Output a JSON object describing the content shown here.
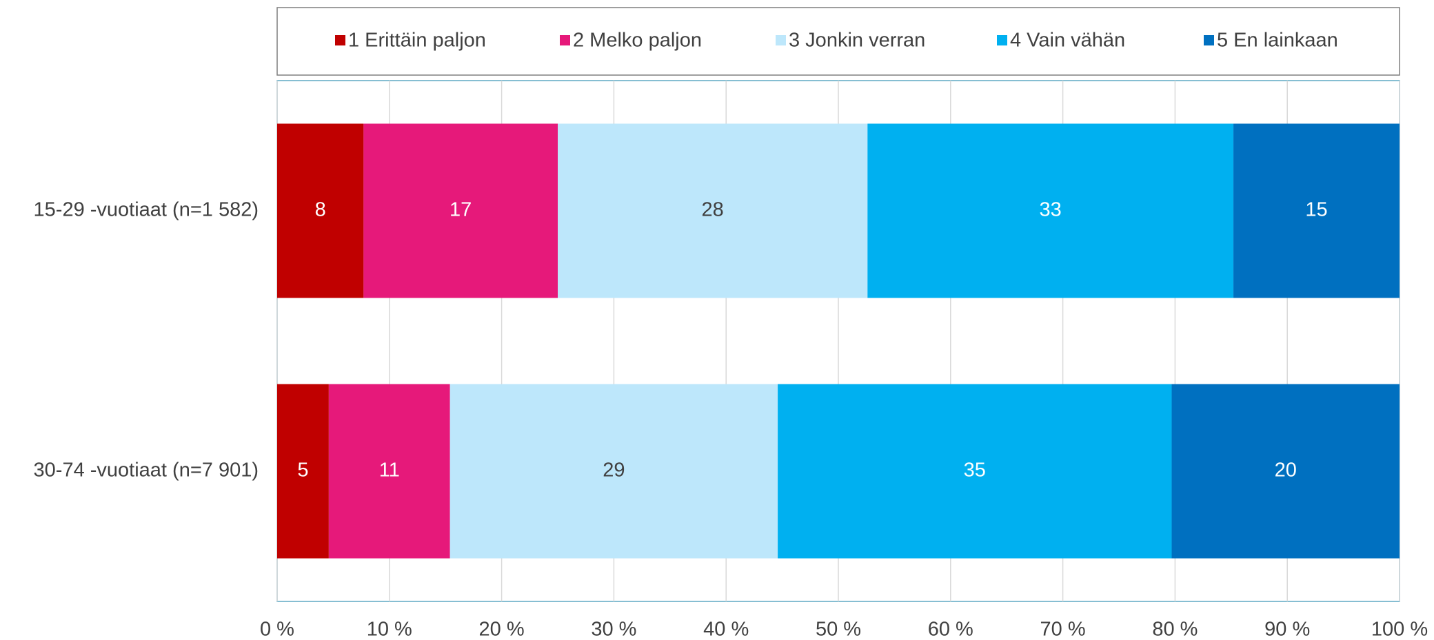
{
  "chart_data": {
    "type": "stacked_barh",
    "categories": [
      "15-29 -vuotiaat (n=1 582)",
      "30-74 -vuotiaat (n=7 901)"
    ],
    "series": [
      {
        "name": "1 Erittäin paljon",
        "color": "#c00000",
        "values": [
          7.7,
          4.6
        ],
        "value_labels": [
          "8",
          "5"
        ]
      },
      {
        "name": "2 Melko paljon",
        "color": "#e6197a",
        "values": [
          17.3,
          10.8
        ],
        "value_labels": [
          "17",
          "11"
        ]
      },
      {
        "name": "3 Jonkin verran",
        "color": "#bde7fb",
        "values": [
          27.6,
          29.2
        ],
        "value_labels": [
          "28",
          "29"
        ]
      },
      {
        "name": "4 Vain vähän",
        "color": "#00b0f0",
        "values": [
          32.6,
          35.1
        ],
        "value_labels": [
          "33",
          "35"
        ]
      },
      {
        "name": "5 En lainkaan",
        "color": "#0070c0",
        "values": [
          14.8,
          20.3
        ],
        "value_labels": [
          "15",
          "20"
        ]
      }
    ],
    "xlim": [
      0,
      100
    ],
    "xticks": [
      {
        "value": 0,
        "label": "0 %"
      },
      {
        "value": 10,
        "label": "10 %"
      },
      {
        "value": 20,
        "label": "20 %"
      },
      {
        "value": 30,
        "label": "30 %"
      },
      {
        "value": 40,
        "label": "40 %"
      },
      {
        "value": 50,
        "label": "50 %"
      },
      {
        "value": 60,
        "label": "60 %"
      },
      {
        "value": 70,
        "label": "70 %"
      },
      {
        "value": 80,
        "label": "80 %"
      },
      {
        "value": 90,
        "label": "90 %"
      },
      {
        "value": 100,
        "label": "100 %"
      }
    ],
    "grid": true,
    "legend": "top"
  }
}
